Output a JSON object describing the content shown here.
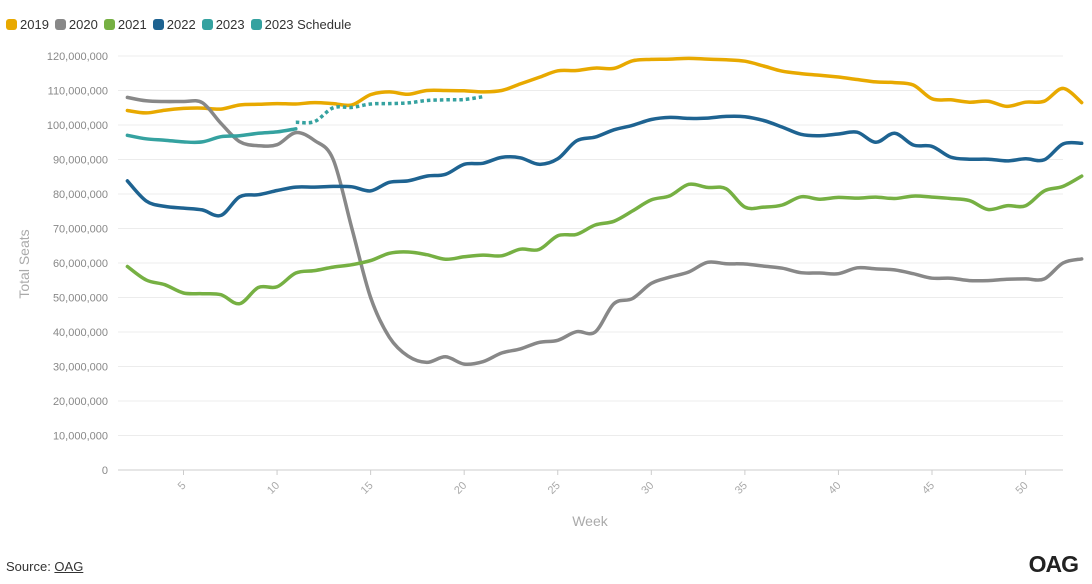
{
  "legend": [
    {
      "label": "2019",
      "color": "#e8a900"
    },
    {
      "label": "2020",
      "color": "#888888"
    },
    {
      "label": "2021",
      "color": "#76b043"
    },
    {
      "label": "2022",
      "color": "#1e6391"
    },
    {
      "label": "2023",
      "color": "#35a2a0"
    },
    {
      "label": "2023 Schedule",
      "color": "#35a2a0"
    }
  ],
  "source": {
    "prefix": "Source: ",
    "link": "OAG"
  },
  "logo": "OAG",
  "chart_data": {
    "type": "line",
    "xlabel": "Week",
    "ylabel": "Total Seats",
    "xlim": [
      1.5,
      52
    ],
    "ylim": [
      0,
      120000000
    ],
    "x_ticks": [
      5,
      10,
      15,
      20,
      25,
      30,
      35,
      40,
      45,
      50
    ],
    "y_ticks": [
      {
        "value": 0,
        "label": "0"
      },
      {
        "value": 10000000,
        "label": "10,000,000"
      },
      {
        "value": 20000000,
        "label": "20,000,000"
      },
      {
        "value": 30000000,
        "label": "30,000,000"
      },
      {
        "value": 40000000,
        "label": "40,000,000"
      },
      {
        "value": 50000000,
        "label": "50,000,000"
      },
      {
        "value": 60000000,
        "label": "60,000,000"
      },
      {
        "value": 70000000,
        "label": "70,000,000"
      },
      {
        "value": 80000000,
        "label": "80,000,000"
      },
      {
        "value": 90000000,
        "label": "90,000,000"
      },
      {
        "value": 100000000,
        "label": "100,000,000"
      },
      {
        "value": 110000000,
        "label": "110,000,000"
      },
      {
        "value": 120000000,
        "label": "120,000,000"
      }
    ],
    "grid": "horizontal",
    "series": [
      {
        "name": "2019",
        "color": "#e8a900",
        "dashed": false,
        "x_start": 2,
        "values": [
          104.2,
          103.5,
          104.3,
          104.8,
          104.9,
          104.6,
          105.8,
          106.0,
          106.2,
          106.1,
          106.5,
          106.2,
          105.8,
          108.8,
          109.6,
          108.9,
          110.0,
          110.0,
          109.9,
          109.6,
          110.0,
          111.9,
          113.8,
          115.7,
          115.8,
          116.5,
          116.4,
          118.6,
          119.0,
          119.1,
          119.3,
          119.1,
          118.9,
          118.5,
          117.1,
          115.6,
          114.9,
          114.4,
          113.9,
          113.2,
          112.5,
          112.3,
          111.6,
          107.6,
          107.3,
          106.6,
          106.9,
          105.4,
          106.6,
          106.9,
          110.6,
          106.5
        ]
      },
      {
        "name": "2020",
        "color": "#888888",
        "dashed": false,
        "x_start": 2,
        "values": [
          108.0,
          107.0,
          106.8,
          106.8,
          106.5,
          100.5,
          95.2,
          94.0,
          94.3,
          97.8,
          95.5,
          90.0,
          70.0,
          50.0,
          38.5,
          33.0,
          31.2,
          32.8,
          30.7,
          31.4,
          33.9,
          35.1,
          37.0,
          37.6,
          40.1,
          40.0,
          48.2,
          49.7,
          54.1,
          55.9,
          57.4,
          60.2,
          59.8,
          59.7,
          59.1,
          58.5,
          57.2,
          57.1,
          56.9,
          58.6,
          58.3,
          58.0,
          56.9,
          55.6,
          55.6,
          54.9,
          54.9,
          55.3,
          55.4,
          55.4,
          60.0,
          61.2
        ]
      },
      {
        "name": "2021",
        "color": "#76b043",
        "dashed": false,
        "x_start": 2,
        "values": [
          59.0,
          55.1,
          53.7,
          51.3,
          51.1,
          50.8,
          48.2,
          52.9,
          53.1,
          57.1,
          57.8,
          58.8,
          59.5,
          60.7,
          62.8,
          63.2,
          62.4,
          61.1,
          61.8,
          62.3,
          62.1,
          64.0,
          63.9,
          67.9,
          68.3,
          71.0,
          72.1,
          75.1,
          78.3,
          79.5,
          82.8,
          81.9,
          81.5,
          76.2,
          76.2,
          76.8,
          79.2,
          78.5,
          79.0,
          78.8,
          79.1,
          78.7,
          79.4,
          79.1,
          78.7,
          78.1,
          75.5,
          76.6,
          76.6,
          80.9,
          82.2,
          85.2
        ]
      },
      {
        "name": "2022",
        "color": "#1e6391",
        "dashed": false,
        "x_start": 2,
        "values": [
          83.8,
          78.0,
          76.4,
          75.9,
          75.4,
          73.8,
          79.2,
          79.8,
          81.0,
          82.0,
          82.0,
          82.2,
          82.1,
          80.9,
          83.4,
          83.8,
          85.2,
          85.7,
          88.6,
          88.9,
          90.6,
          90.5,
          88.6,
          90.2,
          95.4,
          96.5,
          98.6,
          99.9,
          101.6,
          102.2,
          101.9,
          102.0,
          102.5,
          102.4,
          101.3,
          99.4,
          97.3,
          96.9,
          97.4,
          97.9,
          95.0,
          97.6,
          94.2,
          93.8,
          90.7,
          90.1,
          90.1,
          89.6,
          90.2,
          89.9,
          94.5,
          94.7
        ]
      },
      {
        "name": "2023",
        "color": "#35a2a0",
        "dashed": false,
        "x_start": 2,
        "values": [
          97.0,
          96.0,
          95.6,
          95.1,
          95.1,
          96.6,
          96.9,
          97.6,
          98.0,
          98.9
        ]
      },
      {
        "name": "2023 Schedule",
        "color": "#35a2a0",
        "dashed": true,
        "x_start": 11,
        "values": [
          100.8,
          101.0,
          105.0,
          105.1,
          106.1,
          106.2,
          106.4,
          107.1,
          107.3,
          107.4,
          108.2
        ]
      }
    ]
  }
}
